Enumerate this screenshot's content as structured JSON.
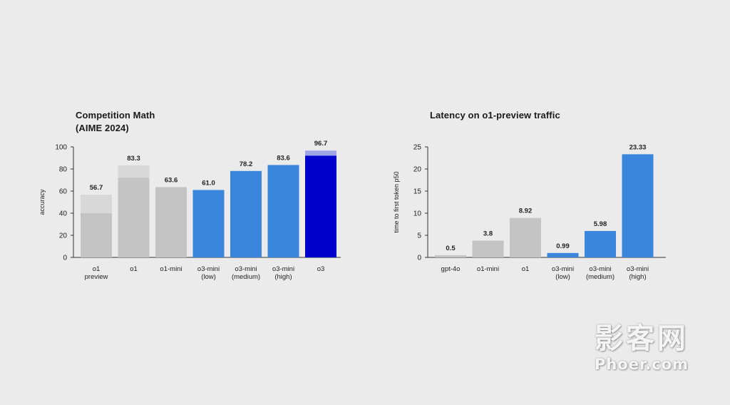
{
  "chart_data": [
    {
      "type": "bar",
      "title": [
        "Competition Math",
        "(AIME 2024)"
      ],
      "ylabel": "accuracy",
      "ylim": [
        0,
        100
      ],
      "yticks": [
        "0",
        "20",
        "40",
        "60",
        "80",
        "100"
      ],
      "grid": false,
      "categories": [
        [
          "o1",
          "preview"
        ],
        [
          "o1"
        ],
        [
          "o1-mini"
        ],
        [
          "o3-mini",
          "(low)"
        ],
        [
          "o3-mini",
          "(medium)"
        ],
        [
          "o3-mini",
          "(high)"
        ],
        [
          "o3"
        ]
      ],
      "values": [
        56.7,
        83.3,
        63.6,
        61.0,
        78.2,
        83.6,
        96.7
      ],
      "value_labels": [
        "56.7",
        "83.3",
        "63.6",
        "61.0",
        "78.2",
        "83.6",
        "96.7"
      ],
      "inner_values": [
        40,
        72,
        null,
        null,
        null,
        null,
        92
      ],
      "colors": [
        "#c4c4c4",
        "#c4c4c4",
        "#c4c4c4",
        "#3a86dd",
        "#3a86dd",
        "#3a86dd",
        "#0000cc"
      ],
      "shade_colors": [
        "#d8d8d8",
        "#d8d8d8",
        null,
        null,
        null,
        null,
        "#9fa6e8"
      ]
    },
    {
      "type": "bar",
      "title": [
        "Latency on o1-preview traffic"
      ],
      "ylabel": "time to first token p50",
      "ylim": [
        0,
        25
      ],
      "yticks": [
        "0",
        "5",
        "10",
        "15",
        "20",
        "25"
      ],
      "grid": false,
      "categories": [
        [
          "gpt-4o"
        ],
        [
          "o1-mini"
        ],
        [
          "o1"
        ],
        [
          "o3-mini",
          "(low)"
        ],
        [
          "o3-mini",
          "(medium)"
        ],
        [
          "o3-mini",
          "(high)"
        ]
      ],
      "values": [
        0.5,
        3.8,
        8.92,
        0.99,
        5.98,
        23.33
      ],
      "value_labels": [
        "0.5",
        "3.8",
        "8.92",
        "0.99",
        "5.98",
        "23.33"
      ],
      "colors": [
        "#c4c4c4",
        "#c4c4c4",
        "#c4c4c4",
        "#3a86dd",
        "#3a86dd",
        "#3a86dd"
      ]
    }
  ],
  "watermark": {
    "chinese": "影客网",
    "url": "Phoer.com"
  }
}
